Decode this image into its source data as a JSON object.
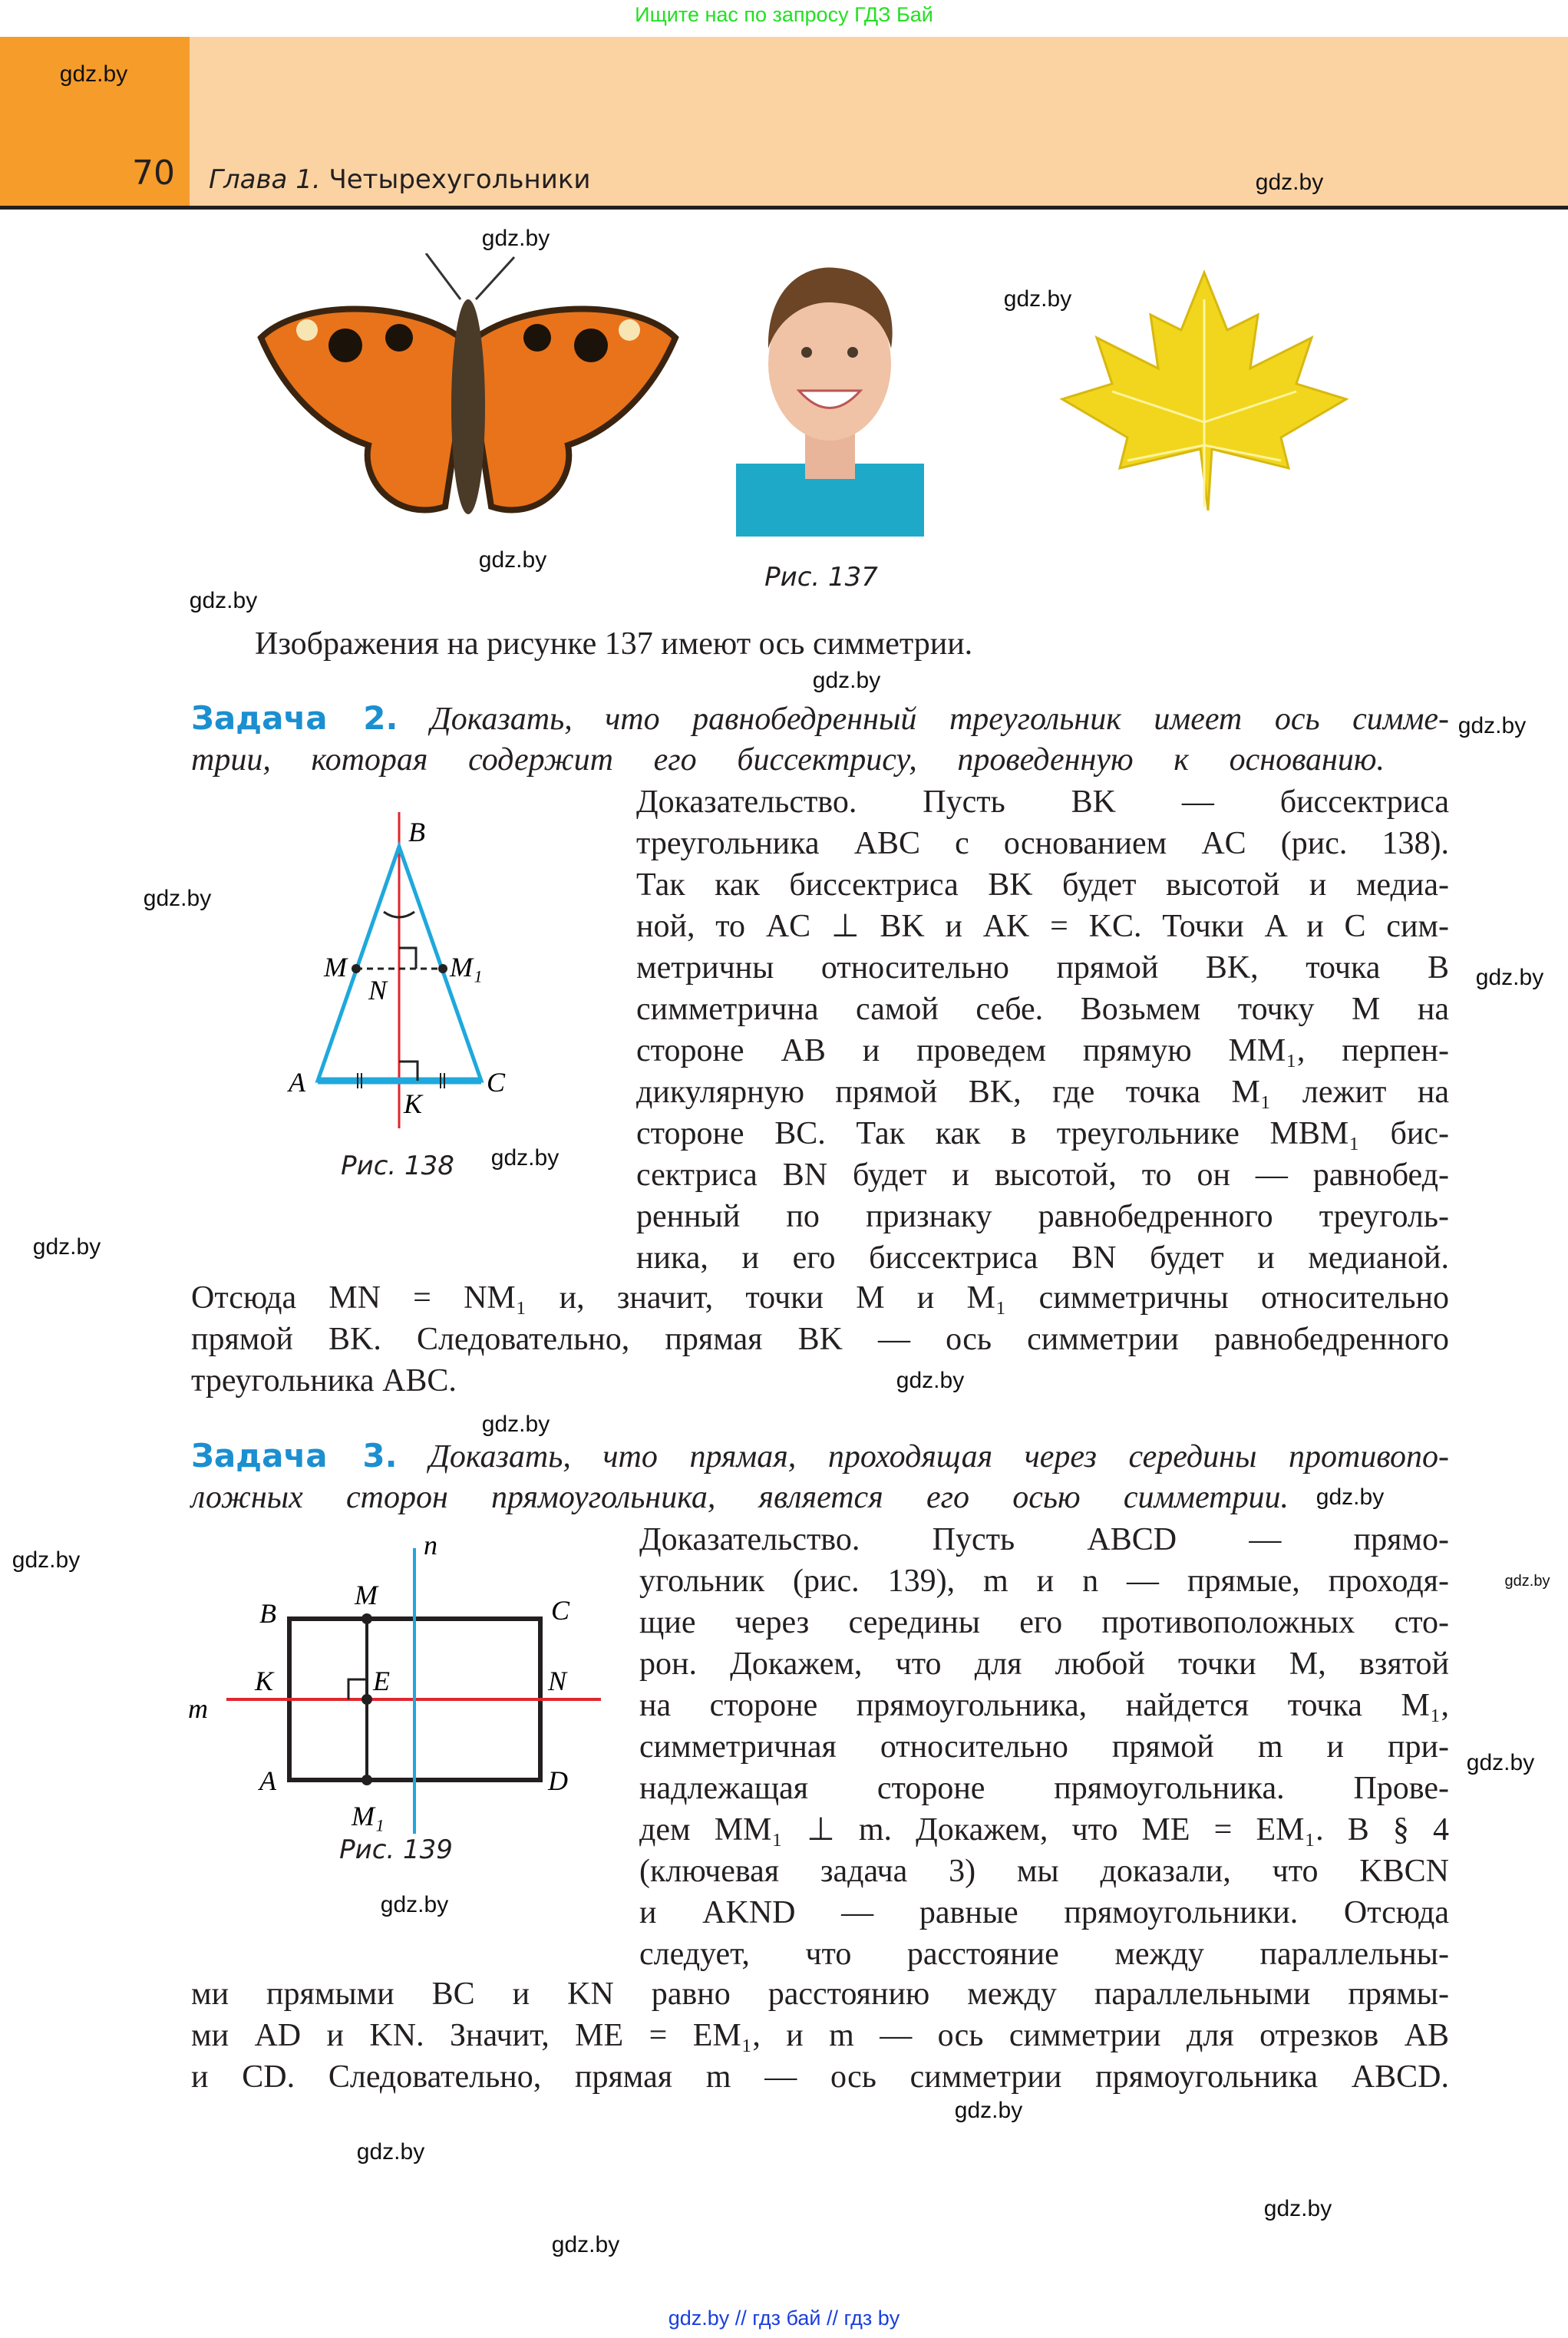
{
  "banner": "Ищите нас по запросу ГДЗ Бай",
  "header": {
    "page_number": "70",
    "chapter_prefix": "Глава 1.",
    "chapter_title": "Четырехугольники",
    "watermark_left": "gdz.by",
    "watermark_right": "gdz.by"
  },
  "colors": {
    "accent_orange": "#f59c2a",
    "header_band": "#fbd3a3",
    "task_blue": "#1b8fd0",
    "axis_red": "#e0262e",
    "figure_blue": "#1fa8dc"
  },
  "figure137": {
    "images": [
      "butterfly",
      "boy-portrait",
      "maple-leaf"
    ],
    "caption": "Рис. 137"
  },
  "intro": "Изображения на рисунке 137 имеют ось симметрии.",
  "task2": {
    "label": "Задача 2.",
    "lines": [
      "Доказать, что равнобедренный треугольник имеет ось симме-",
      "трии, которая содержит его биссектрису, проведенную к основанию."
    ],
    "proof_lines": [
      "Доказательство. Пусть BK — биссектриса",
      "треугольника ABC с основанием AC (рис. 138).",
      "Так как биссектриса BK будет высотой и медиа-",
      "ной, то AC ⊥ BK и AK = KC. Точки A и C сим-",
      "метричны относительно прямой BK, точка B",
      "симметрична самой себе. Возьмем точку M на",
      "стороне AB и проведем прямую MM₁, перпен-",
      "дикулярную прямой BK, где точка M₁ лежит на",
      "стороне BC. Так как в треугольнике MBM₁ бис-",
      "сектриса BN будет и высотой, то он — равнобед-",
      "ренный по признаку равнобедренного треуголь-",
      "ника, и его биссектриса BN будет и медианой."
    ],
    "full_lines": [
      "Отсюда MN = NM₁ и, значит, точки M и M₁ симметричны относительно",
      "прямой BK. Следовательно, прямая BK — ось симметрии равнобедренного",
      "треугольника ABC."
    ]
  },
  "figure138": {
    "labels": {
      "B": "B",
      "M": "M",
      "M1": "M₁",
      "N": "N",
      "A": "A",
      "K": "K",
      "C": "C"
    },
    "caption": "Рис. 138"
  },
  "task3": {
    "label": "Задача 3.",
    "lines": [
      "Доказать, что прямая, проходящая через середины противопо-",
      "ложных сторон прямоугольника, является его осью симметрии."
    ],
    "proof_lines": [
      "Доказательство. Пусть ABCD — прямо-",
      "угольник (рис. 139), m и n — прямые, проходя-",
      "щие через середины его противоположных сто-",
      "рон. Докажем, что для любой точки M, взятой",
      "на стороне прямоугольника, найдется точка M₁,",
      "симметричная относительно прямой m и при-",
      "надлежащая стороне прямоугольника. Прове-",
      "дем MM₁ ⊥ m. Докажем, что ME = EM₁. В § 4",
      "(ключевая задача 3) мы доказали, что KBCN",
      "и AKND — равные прямоугольники. Отсюда",
      "следует, что расстояние между параллельны-"
    ],
    "full_lines": [
      "ми прямыми BC и KN равно расстоянию между параллельными прямы-",
      "ми AD и KN. Значит, ME = EM₁, и m — ось симметрии для отрезков AB",
      "и CD. Следовательно, прямая m — ось симметрии прямоугольника ABCD."
    ]
  },
  "figure139": {
    "labels": {
      "n": "n",
      "m": "m",
      "B": "B",
      "M": "M",
      "C": "C",
      "K": "K",
      "E": "E",
      "N": "N",
      "A": "A",
      "M1": "M₁",
      "D": "D"
    },
    "caption": "Рис. 139"
  },
  "watermarks": [
    "gdz.by",
    "gdz.by",
    "gdz.by",
    "gdz.by",
    "gdz.by",
    "gdz.by",
    "gdz.by",
    "gdz.by",
    "gdz.by",
    "gdz.by",
    "gdz.by",
    "gdz.by",
    "gdz.by",
    "gdz.by",
    "gdz.by",
    "gdz.by",
    "gdz.by",
    "gdz.by",
    "gdz.by",
    "gdz.by",
    "gdz.by"
  ],
  "footer": "gdz.by  //  гдз бай  //  гдз by"
}
